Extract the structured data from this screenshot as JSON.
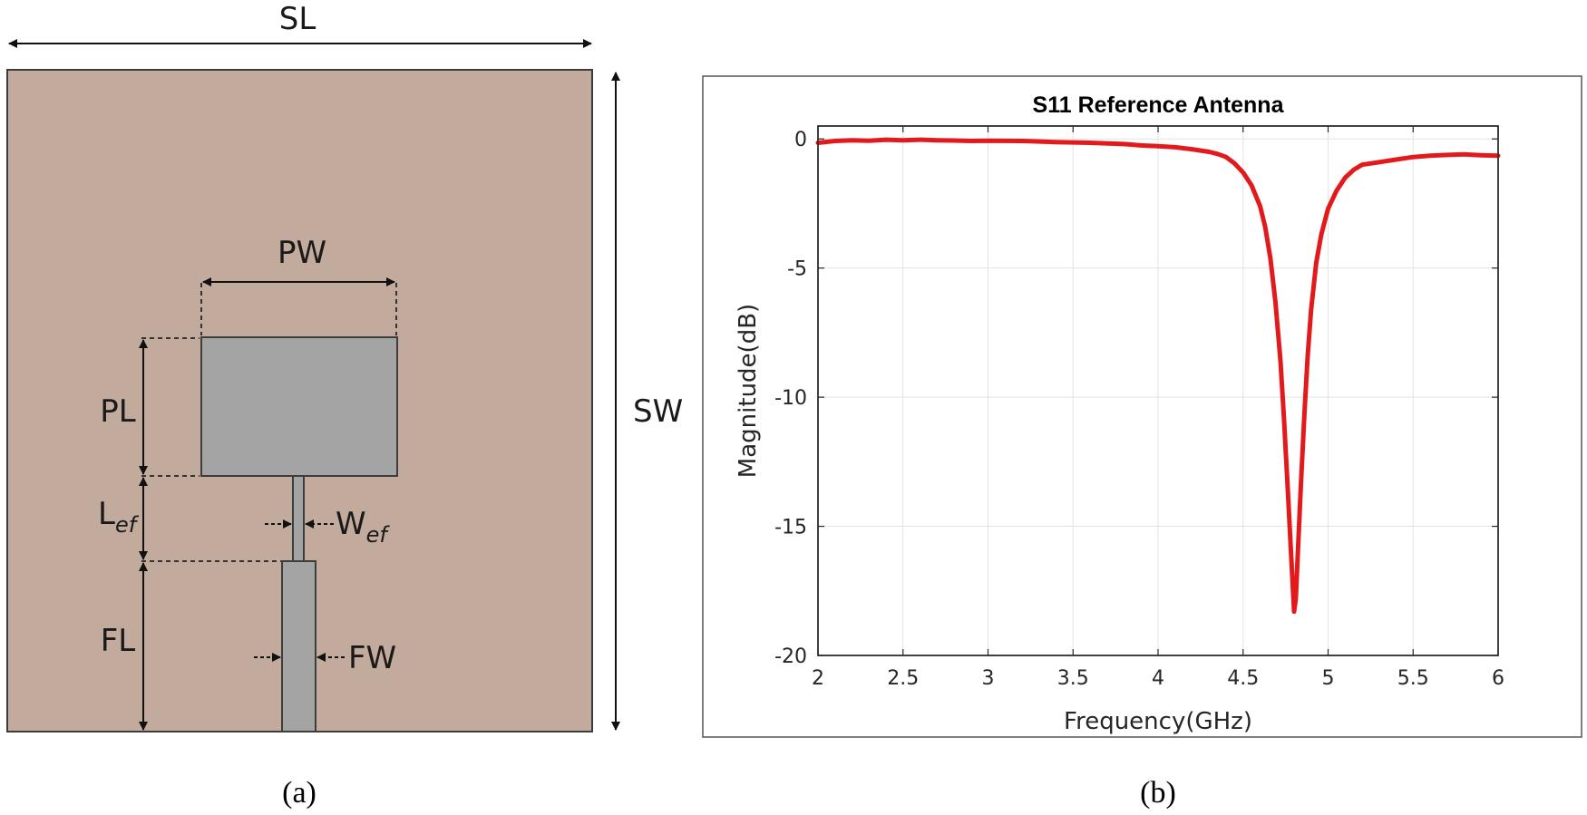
{
  "panel_a": {
    "caption": "(a)",
    "labels": {
      "SL": "SL",
      "SW": "SW",
      "PW": "PW",
      "PL": "PL",
      "Lef_main": "L",
      "Lef_sub": "ef",
      "Wef_main": "W",
      "Wef_sub": "ef",
      "FL": "FL",
      "FW": "FW"
    },
    "colors": {
      "substrate": "#c2aa9d",
      "metal": "#a4a4a4",
      "outline": "#3d3d3d",
      "arrow": "#111111"
    }
  },
  "panel_b": {
    "caption": "(b)"
  },
  "chart_data": {
    "type": "line",
    "title": "S11 Reference Antenna",
    "xlabel": "Frequency(GHz)",
    "ylabel": "Magnitude(dB)",
    "xlim": [
      2,
      6
    ],
    "ylim": [
      -20,
      0.5
    ],
    "xticks": [
      2,
      2.5,
      3,
      3.5,
      4,
      4.5,
      5,
      5.5,
      6
    ],
    "xtick_labels": [
      "2",
      "2.5",
      "3",
      "3.5",
      "4",
      "4.5",
      "5",
      "5.5",
      "6"
    ],
    "yticks": [
      0,
      -5,
      -10,
      -15,
      -20
    ],
    "ytick_labels": [
      "0",
      "-5",
      "-10",
      "-15",
      "-20"
    ],
    "grid": true,
    "series": [
      {
        "color": "#e31a1c",
        "x": [
          2.0,
          2.1,
          2.2,
          2.3,
          2.4,
          2.5,
          2.6,
          2.7,
          2.8,
          2.9,
          3.0,
          3.2,
          3.4,
          3.6,
          3.8,
          3.9,
          4.0,
          4.1,
          4.2,
          4.3,
          4.35,
          4.4,
          4.45,
          4.5,
          4.55,
          4.6,
          4.63,
          4.66,
          4.69,
          4.72,
          4.74,
          4.76,
          4.78,
          4.8,
          4.81,
          4.82,
          4.84,
          4.86,
          4.88,
          4.9,
          4.93,
          4.96,
          5.0,
          5.05,
          5.1,
          5.15,
          5.2,
          5.3,
          5.4,
          5.5,
          5.6,
          5.7,
          5.8,
          5.9,
          6.0
        ],
        "y": [
          -0.15,
          -0.08,
          -0.05,
          -0.07,
          -0.03,
          -0.05,
          -0.03,
          -0.05,
          -0.06,
          -0.08,
          -0.07,
          -0.08,
          -0.12,
          -0.15,
          -0.2,
          -0.25,
          -0.28,
          -0.32,
          -0.4,
          -0.5,
          -0.58,
          -0.7,
          -0.95,
          -1.3,
          -1.8,
          -2.6,
          -3.4,
          -4.6,
          -6.3,
          -8.6,
          -10.8,
          -13.2,
          -15.8,
          -18.3,
          -17.8,
          -16.3,
          -13.4,
          -10.7,
          -8.4,
          -6.6,
          -4.8,
          -3.7,
          -2.7,
          -2.0,
          -1.5,
          -1.2,
          -1.0,
          -0.9,
          -0.8,
          -0.7,
          -0.65,
          -0.62,
          -0.6,
          -0.63,
          -0.65
        ]
      }
    ]
  }
}
